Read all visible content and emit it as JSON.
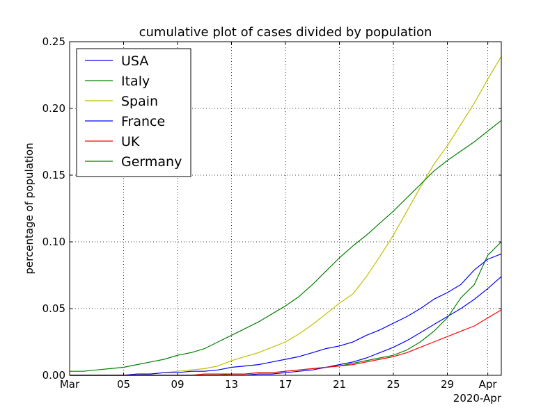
{
  "chart_data": {
    "type": "line",
    "title": "cumulative plot of cases divided by population",
    "xlabel": "",
    "ylabel": "percentage of population",
    "x_offset_label": "2020-Apr",
    "x_ticks": [
      {
        "day": 1,
        "label": "Mar"
      },
      {
        "day": 5,
        "label": "05"
      },
      {
        "day": 9,
        "label": "09"
      },
      {
        "day": 13,
        "label": "13"
      },
      {
        "day": 17,
        "label": "17"
      },
      {
        "day": 21,
        "label": "21"
      },
      {
        "day": 25,
        "label": "25"
      },
      {
        "day": 29,
        "label": "29"
      },
      {
        "day": 32,
        "label": "Apr"
      }
    ],
    "y_ticks": [
      {
        "value": 0.0,
        "label": "0.00"
      },
      {
        "value": 0.05,
        "label": "0.05"
      },
      {
        "value": 0.1,
        "label": "0.10"
      },
      {
        "value": 0.15,
        "label": "0.15"
      },
      {
        "value": 0.2,
        "label": "0.20"
      },
      {
        "value": 0.25,
        "label": "0.25"
      }
    ],
    "xlim": [
      1,
      33
    ],
    "ylim": [
      0,
      0.25
    ],
    "grid": true,
    "legend_position": "top-left",
    "x": [
      1,
      2,
      3,
      4,
      5,
      6,
      7,
      8,
      9,
      10,
      11,
      12,
      13,
      14,
      15,
      16,
      17,
      18,
      19,
      20,
      21,
      22,
      23,
      24,
      25,
      26,
      27,
      28,
      29,
      30,
      31,
      32,
      33
    ],
    "series": [
      {
        "name": "USA",
        "color": "#0000ff",
        "values": [
          0.0,
          0.0,
          0.0,
          0.0,
          0.0,
          0.0,
          0.0,
          0.0,
          0.0,
          0.0,
          0.0,
          0.0,
          0.0,
          0.0,
          0.001,
          0.001,
          0.002,
          0.003,
          0.004,
          0.006,
          0.008,
          0.01,
          0.013,
          0.017,
          0.021,
          0.026,
          0.032,
          0.038,
          0.044,
          0.05,
          0.057,
          0.065,
          0.074
        ]
      },
      {
        "name": "Italy",
        "color": "#008000",
        "values": [
          0.0,
          0.0,
          0.0,
          0.0,
          0.0,
          0.0,
          0.0,
          0.0,
          0.0,
          0.0,
          0.0,
          0.0,
          0.001,
          0.001,
          0.002,
          0.002,
          0.003,
          0.004,
          0.005,
          0.006,
          0.007,
          0.009,
          0.011,
          0.013,
          0.015,
          0.019,
          0.025,
          0.033,
          0.043,
          0.058,
          0.068,
          0.09,
          0.1
        ]
      },
      {
        "name": "Spain",
        "color": "#bfbf00",
        "values": [
          0.0,
          0.0,
          0.0,
          0.0,
          0.0,
          0.0,
          0.001,
          0.002,
          0.003,
          0.004,
          0.005,
          0.007,
          0.011,
          0.014,
          0.017,
          0.021,
          0.025,
          0.031,
          0.038,
          0.046,
          0.054,
          0.061,
          0.074,
          0.089,
          0.105,
          0.123,
          0.141,
          0.158,
          0.172,
          0.188,
          0.204,
          0.222,
          0.239
        ]
      },
      {
        "name": "France",
        "color": "#0000ff",
        "values": [
          0.0,
          0.0,
          0.0,
          0.0,
          0.0,
          0.001,
          0.001,
          0.002,
          0.002,
          0.003,
          0.003,
          0.004,
          0.006,
          0.007,
          0.008,
          0.01,
          0.012,
          0.014,
          0.017,
          0.02,
          0.022,
          0.025,
          0.03,
          0.034,
          0.039,
          0.044,
          0.05,
          0.057,
          0.062,
          0.068,
          0.079,
          0.087,
          0.091
        ]
      },
      {
        "name": "UK",
        "color": "#ff0000",
        "values": [
          0.0,
          0.0,
          0.0,
          0.0,
          0.0,
          0.0,
          0.0,
          0.0,
          0.0,
          0.0,
          0.001,
          0.001,
          0.001,
          0.001,
          0.002,
          0.002,
          0.003,
          0.004,
          0.005,
          0.006,
          0.007,
          0.008,
          0.01,
          0.012,
          0.014,
          0.017,
          0.021,
          0.025,
          0.029,
          0.033,
          0.037,
          0.043,
          0.049
        ]
      },
      {
        "name": "Germany",
        "color": "#008000",
        "values": [
          0.003,
          0.003,
          0.004,
          0.005,
          0.006,
          0.008,
          0.01,
          0.012,
          0.015,
          0.017,
          0.02,
          0.025,
          0.03,
          0.035,
          0.04,
          0.046,
          0.052,
          0.059,
          0.068,
          0.078,
          0.088,
          0.097,
          0.105,
          0.114,
          0.123,
          0.133,
          0.143,
          0.153,
          0.161,
          0.168,
          0.175,
          0.183,
          0.191
        ]
      }
    ]
  }
}
